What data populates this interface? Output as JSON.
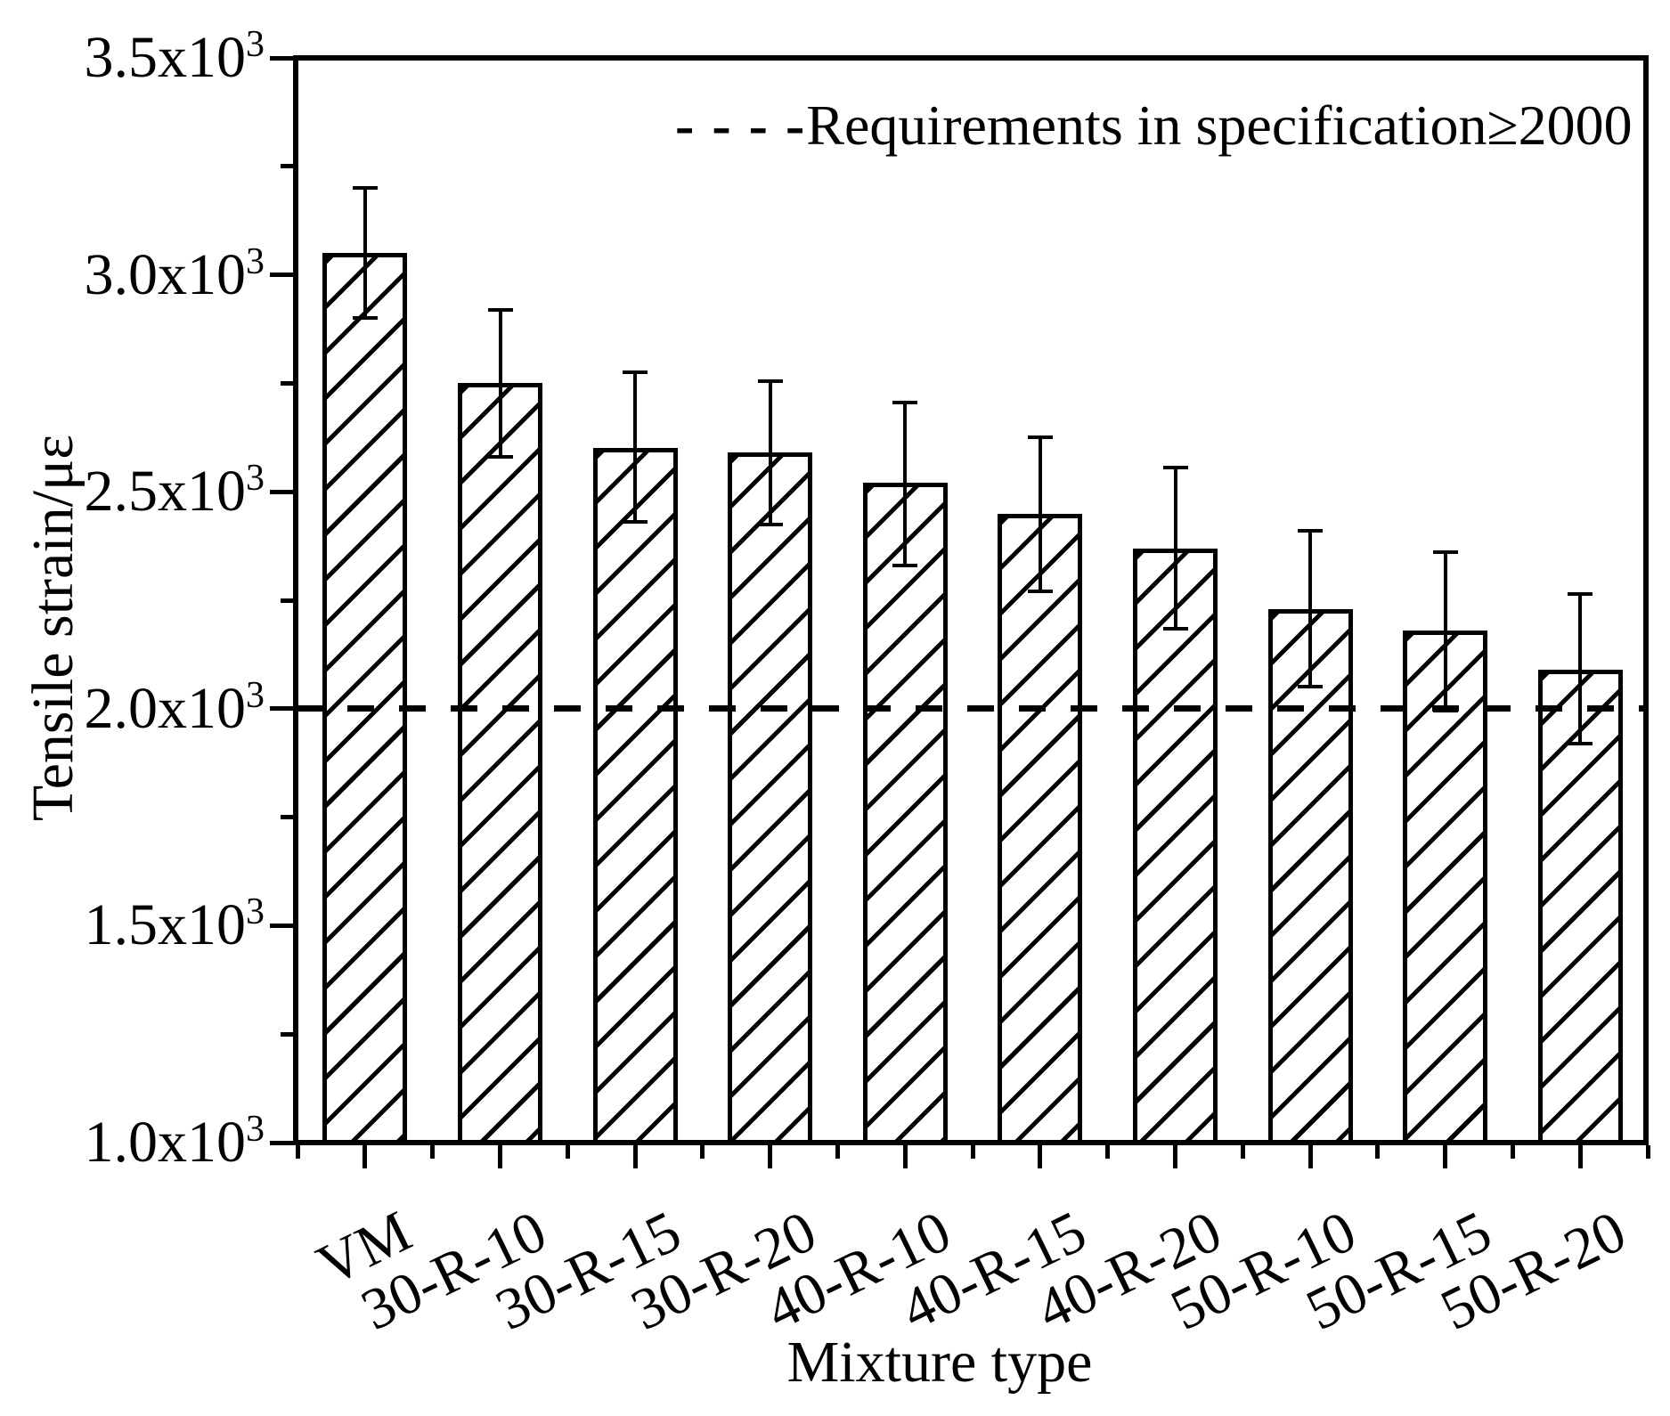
{
  "chart_data": {
    "type": "bar",
    "title": "",
    "xlabel": "Mixture type",
    "ylabel": "Tensile strain/με",
    "categories": [
      "VM",
      "30-R-10",
      "30-R-15",
      "30-R-20",
      "40-R-10",
      "40-R-15",
      "40-R-20",
      "50-R-10",
      "50-R-15",
      "50-R-20"
    ],
    "values": [
      3050,
      2750,
      2600,
      2590,
      2520,
      2450,
      2370,
      2230,
      2180,
      2090
    ],
    "error_plus": [
      150,
      170,
      175,
      165,
      185,
      175,
      185,
      180,
      180,
      175
    ],
    "error_minus": [
      150,
      170,
      170,
      165,
      190,
      180,
      185,
      180,
      185,
      170
    ],
    "ylim": [
      1000,
      3500
    ],
    "y_major_step": 500,
    "y_minor_step": 250,
    "y_major_ticks": [
      {
        "value": 3500,
        "label": "3.5x10",
        "sup": "3"
      },
      {
        "value": 3000,
        "label": "3.0x10",
        "sup": "3"
      },
      {
        "value": 2500,
        "label": "2.5x10",
        "sup": "3"
      },
      {
        "value": 2000,
        "label": "2.0x10",
        "sup": "3"
      },
      {
        "value": 1500,
        "label": "1.5x10",
        "sup": "3"
      },
      {
        "value": 1000,
        "label": "1.0x10",
        "sup": "3"
      }
    ],
    "grid": "off",
    "bar_fill": "diagonal-hatch",
    "reference_line": {
      "value": 2000,
      "style": "dashed"
    },
    "legend": {
      "line_symbol": "- - - -",
      "label": "Requirements in specification≥2000",
      "position": "top-center"
    }
  },
  "colors": {
    "foreground": "#000000",
    "background": "#ffffff"
  }
}
